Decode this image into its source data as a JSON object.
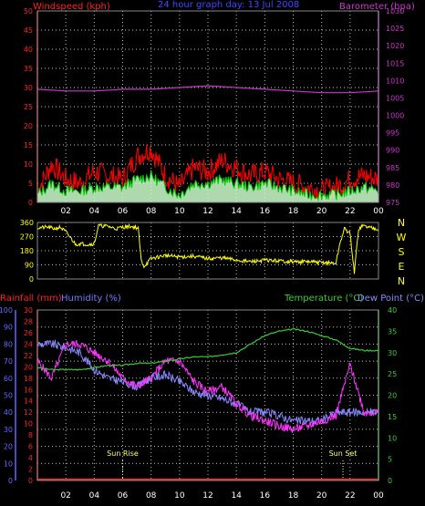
{
  "header": {
    "windspeed_label": "Windspeed (kph)",
    "title": "24 hour graph day: 13 Jul 2008",
    "barometer_label": "Barometer (hpa)"
  },
  "colors": {
    "background": "#000000",
    "grid": "#bbbbbb",
    "axis_left": "#ff2020",
    "axis_right": "#cc33cc",
    "wind_gust": "#ff0000",
    "wind_avg": "#00cc00",
    "wind_fill": "#ccffcc",
    "barometer": "#cc33cc",
    "direction": "#ffff00",
    "compass": "#ffff00",
    "rain": "#ff2020",
    "humidity": "#ff33ff",
    "humidity_axis": "#6666ff",
    "temperature": "#33cc33",
    "dewpoint": "#8888ff",
    "sun_label": "#ffff66"
  },
  "chart_data": [
    {
      "type": "line",
      "name": "wind",
      "x_ticks": [
        "02",
        "04",
        "06",
        "08",
        "10",
        "12",
        "14",
        "16",
        "18",
        "20",
        "22",
        "00"
      ],
      "y_left_ticks": [
        "0",
        "5",
        "10",
        "15",
        "20",
        "25",
        "30",
        "35",
        "40",
        "45",
        "50"
      ],
      "y_right_ticks": [
        "975",
        "980",
        "985",
        "990",
        "995",
        "1000",
        "1005",
        "1010",
        "1015",
        "1020",
        "1025",
        "1030"
      ],
      "ylim_left": [
        0,
        50
      ],
      "ylim_right": [
        975,
        1030
      ],
      "series": [
        {
          "hour": [
            0,
            1,
            2,
            3,
            4,
            5,
            6,
            7,
            8,
            9,
            10,
            11,
            12,
            13,
            14,
            15,
            16,
            17,
            18,
            19,
            20,
            21,
            22,
            23,
            24
          ],
          "gust": [
            3,
            10,
            6,
            5,
            8,
            7,
            6,
            12,
            14,
            7,
            4,
            9,
            8,
            11,
            9,
            7,
            8,
            6,
            5,
            4,
            3,
            4,
            6,
            7,
            6
          ]
        },
        {
          "hour": [
            0,
            1,
            2,
            3,
            4,
            5,
            6,
            7,
            8,
            9,
            10,
            11,
            12,
            13,
            14,
            15,
            16,
            17,
            18,
            19,
            20,
            21,
            22,
            23,
            24
          ],
          "average": [
            2,
            5,
            3,
            3,
            4,
            4,
            4,
            6,
            7,
            4,
            2,
            5,
            5,
            6,
            5,
            4,
            5,
            4,
            3,
            2,
            2,
            2,
            3,
            4,
            3
          ]
        },
        {
          "hour": [
            0,
            2,
            4,
            6,
            8,
            10,
            12,
            14,
            16,
            18,
            20,
            22,
            24
          ],
          "barometer": [
            1007.5,
            1007,
            1007,
            1007.5,
            1007.5,
            1008,
            1008.5,
            1008,
            1007.5,
            1007,
            1006.5,
            1006.5,
            1007
          ]
        }
      ]
    },
    {
      "type": "line",
      "name": "wind direction",
      "y_ticks": [
        "360",
        "270",
        "180",
        "90",
        "0"
      ],
      "compass": [
        "N",
        "W",
        "S",
        "E",
        "N"
      ],
      "ylim": [
        0,
        360
      ],
      "hour": [
        0,
        0.7,
        1.2,
        1.6,
        2,
        2.7,
        3,
        3.6,
        4,
        4.3,
        5,
        5.5,
        6,
        6.5,
        6.9,
        7.1,
        7.3,
        7.5,
        8,
        9,
        10,
        11,
        12,
        13,
        14,
        15,
        16,
        17,
        18,
        19,
        20,
        21,
        21.3,
        21.6,
        22,
        22.3,
        22.6,
        22.9,
        23.3,
        24
      ],
      "direction": [
        325,
        330,
        320,
        330,
        300,
        220,
        225,
        220,
        225,
        340,
        335,
        320,
        330,
        335,
        330,
        320,
        120,
        80,
        130,
        150,
        140,
        145,
        130,
        135,
        120,
        110,
        120,
        115,
        110,
        110,
        105,
        100,
        230,
        320,
        290,
        40,
        320,
        340,
        330,
        320
      ]
    },
    {
      "type": "line",
      "name": "rain humidity temperature",
      "header": {
        "rain_label": "Rainfall (mm)",
        "humidity_label": "Humidity (%)",
        "temp_label": "Temperature (°C)",
        "dew_label": "Dew Point (°C)"
      },
      "humidity_ticks": [
        "0",
        "10",
        "20",
        "30",
        "40",
        "50",
        "60",
        "70",
        "80",
        "90",
        "100"
      ],
      "rain_ticks": [
        "0",
        "2",
        "4",
        "6",
        "8",
        "10",
        "12",
        "14",
        "16",
        "18",
        "20",
        "22",
        "24",
        "26",
        "28",
        "30"
      ],
      "temp_ticks": [
        "0",
        "5",
        "10",
        "15",
        "20",
        "25",
        "30",
        "35",
        "40"
      ],
      "sunrise": {
        "label": "Sun Rise",
        "hour": 6
      },
      "sunset": {
        "label": "Sun Set",
        "hour": 21.5
      },
      "rain_hour": [
        0,
        24
      ],
      "rain": [
        0,
        0
      ],
      "hour": [
        0,
        1,
        2,
        3,
        4,
        5,
        6,
        7,
        8,
        9,
        10,
        11,
        12,
        13,
        14,
        15,
        16,
        17,
        18,
        19,
        20,
        21,
        22,
        23,
        24
      ],
      "temperature": [
        26.5,
        26,
        26,
        26,
        26.5,
        27,
        27,
        27.5,
        27.5,
        28,
        28.5,
        29,
        29,
        29.5,
        30,
        32,
        34,
        35,
        35.5,
        35,
        34,
        33,
        31,
        30.5,
        30.5
      ],
      "humidity": [
        70,
        60,
        80,
        80,
        75,
        70,
        60,
        55,
        60,
        70,
        70,
        58,
        52,
        55,
        45,
        38,
        35,
        32,
        30,
        32,
        35,
        38,
        68,
        40,
        40
      ],
      "dewpoint": [
        80,
        80,
        78,
        75,
        65,
        60,
        58,
        55,
        60,
        62,
        58,
        52,
        50,
        48,
        45,
        40,
        40,
        38,
        35,
        35,
        35,
        40,
        40,
        40,
        40
      ]
    }
  ]
}
